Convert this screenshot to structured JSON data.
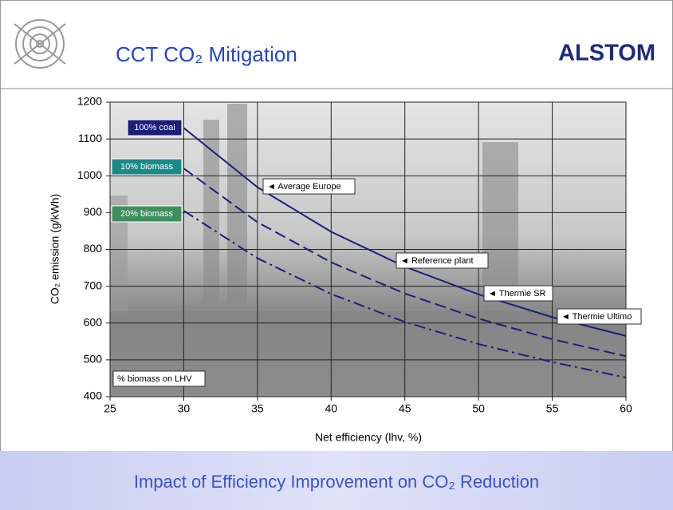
{
  "header": {
    "title": "CCT CO₂ Mitigation",
    "logo": "ALSTOM"
  },
  "chart_data": {
    "type": "line",
    "x": [
      30,
      35,
      40,
      45,
      50,
      55,
      60
    ],
    "series": [
      {
        "name": "100% coal",
        "color": "#1c1f7a",
        "label_color": "#1c1f7a",
        "dash": "solid",
        "values": [
          1130,
          969,
          848,
          753,
          678,
          616,
          565
        ]
      },
      {
        "name": "10% biomass",
        "color": "#1c1f7a",
        "label_color": "#1b8a87",
        "dash": "dashed",
        "values": [
          1020,
          874,
          765,
          680,
          612,
          556,
          510
        ]
      },
      {
        "name": "20% biomass",
        "color": "#1c1f7a",
        "label_color": "#3f8f5e",
        "dash": "dashdot",
        "values": [
          905,
          776,
          679,
          603,
          543,
          494,
          452
        ]
      }
    ],
    "xlabel": "Net efficiency (lhv, %)",
    "ylabel": "CO₂ emission (g/kWh)",
    "xlim": [
      25,
      60
    ],
    "xticks": [
      25,
      30,
      35,
      40,
      45,
      50,
      55,
      60
    ],
    "ylim": [
      400,
      1200
    ],
    "yticks": [
      400,
      500,
      600,
      700,
      800,
      900,
      1000,
      1100,
      1200
    ],
    "grid": true,
    "annotations": [
      "◄ Average Europe",
      "◄ Reference plant",
      "◄ Thermie SR",
      "◄ Thermie Ultimo",
      "% biomass on LHV"
    ]
  },
  "footer": {
    "text": "Impact of Efficiency Improvement on CO₂ Reduction"
  }
}
